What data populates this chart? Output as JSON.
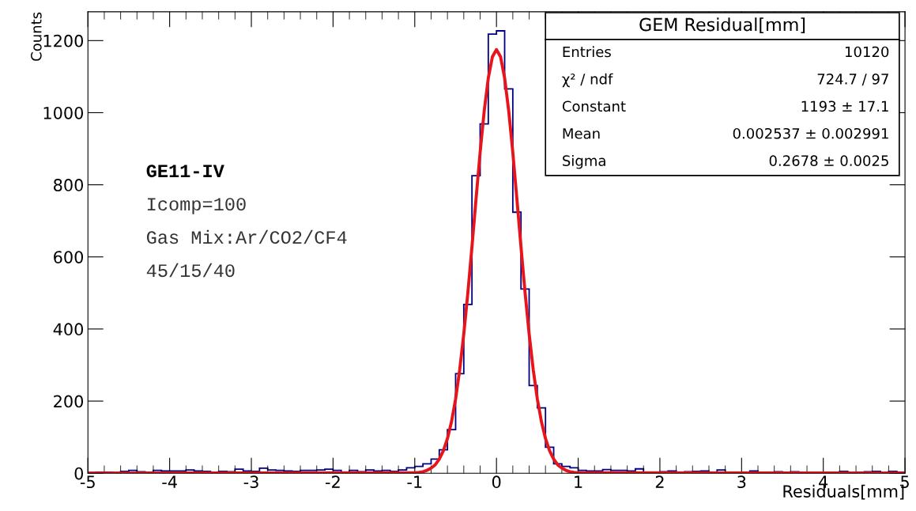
{
  "chart_data": {
    "type": "histogram",
    "title": "GEM Residual[mm]",
    "xlabel": "Residuals[mm]",
    "ylabel": "Counts",
    "bins": [
      -5.0,
      -4.9,
      -4.8,
      -4.7,
      -4.6,
      -4.5,
      -4.4,
      -4.3,
      -4.2,
      -4.1,
      -4.0,
      -3.9,
      -3.8,
      -3.7,
      -3.6,
      -3.5,
      -3.4,
      -3.3,
      -3.2,
      -3.1,
      -3.0,
      -2.9,
      -2.8,
      -2.7,
      -2.6,
      -2.5,
      -2.4,
      -2.3,
      -2.2,
      -2.1,
      -2.0,
      -1.9,
      -1.8,
      -1.7,
      -1.6,
      -1.5,
      -1.4,
      -1.3,
      -1.2,
      -1.1,
      -1.0,
      -0.9,
      -0.8,
      -0.7,
      -0.6,
      -0.5,
      -0.4,
      -0.3,
      -0.2,
      -0.1,
      0.0,
      0.1,
      0.2,
      0.3,
      0.4,
      0.5,
      0.6,
      0.7,
      0.8,
      0.9,
      1.0,
      1.1,
      1.2,
      1.3,
      1.4,
      1.5,
      1.6,
      1.7,
      1.8,
      1.9,
      2.0,
      2.1,
      2.2,
      2.3,
      2.4,
      2.5,
      2.6,
      2.7,
      2.8,
      2.9,
      3.0,
      3.1,
      3.2,
      3.3,
      3.4,
      3.5,
      3.6,
      3.7,
      3.8,
      3.9,
      4.0,
      4.1,
      4.2,
      4.3,
      4.4,
      4.5,
      4.6,
      4.7,
      4.8,
      4.9,
      5.0
    ],
    "series": [
      {
        "type": "histogram",
        "color": "#000080",
        "values": [
          2,
          3,
          3,
          2,
          5,
          8,
          4,
          3,
          8,
          6,
          6,
          6,
          9,
          6,
          5,
          3,
          5,
          4,
          11,
          6,
          5,
          14,
          9,
          8,
          6,
          5,
          8,
          8,
          9,
          11,
          8,
          3,
          8,
          4,
          9,
          6,
          8,
          5,
          9,
          15,
          19,
          26,
          39,
          65,
          121,
          276,
          468,
          825,
          969,
          1218,
          1227,
          1066,
          724,
          511,
          243,
          181,
          72,
          26,
          19,
          15,
          8,
          6,
          6,
          10,
          8,
          8,
          6,
          12,
          2,
          2,
          4,
          6,
          3,
          4,
          5,
          6,
          3,
          9,
          2,
          2,
          3,
          6,
          3,
          3,
          4,
          3,
          4,
          2,
          2,
          2,
          2,
          3,
          5,
          2,
          3,
          4,
          5,
          2,
          5,
          3
        ]
      },
      {
        "type": "line",
        "color": "#e8141c",
        "x": [
          -5.0,
          -1.0,
          -0.95,
          -0.9,
          -0.85,
          -0.8,
          -0.75,
          -0.7,
          -0.65,
          -0.6,
          -0.55,
          -0.5,
          -0.45,
          -0.4,
          -0.35,
          -0.3,
          -0.25,
          -0.2,
          -0.15,
          -0.1,
          -0.05,
          0.0,
          0.05,
          0.1,
          0.15,
          0.2,
          0.25,
          0.3,
          0.35,
          0.4,
          0.45,
          0.5,
          0.55,
          0.6,
          0.65,
          0.7,
          0.75,
          0.8,
          0.85,
          0.9,
          0.95,
          1.0,
          5.0
        ],
        "values": [
          0,
          1,
          2,
          4,
          8,
          14,
          23,
          39,
          62,
          96,
          143,
          206,
          287,
          386,
          501,
          628,
          761,
          890,
          1005,
          1096,
          1155,
          1175,
          1155,
          1096,
          1005,
          890,
          761,
          628,
          501,
          386,
          287,
          206,
          143,
          96,
          62,
          39,
          23,
          14,
          8,
          4,
          2,
          1,
          0
        ]
      }
    ],
    "xlim": [
      -5,
      5
    ],
    "xticks": [
      -5,
      -4,
      -3,
      -2,
      -1,
      0,
      1,
      2,
      3,
      4,
      5
    ],
    "ylim": [
      0,
      1280
    ],
    "yticks": [
      0,
      200,
      400,
      600,
      800,
      1000,
      1200
    ],
    "grid": false,
    "legend": false,
    "line_style": "solid",
    "annotations": [
      "GE11-IV",
      "Icomp=100",
      "Gas Mix:Ar/CO2/CF4",
      "45/15/40",
      "Entries",
      "10120",
      "χ² / ndf",
      "724.7 / 97",
      "Constant",
      "1193 ± 17.1",
      "Mean",
      "0.002537 ± 0.002991",
      "Sigma",
      "0.2678 ± 0.0025"
    ]
  }
}
